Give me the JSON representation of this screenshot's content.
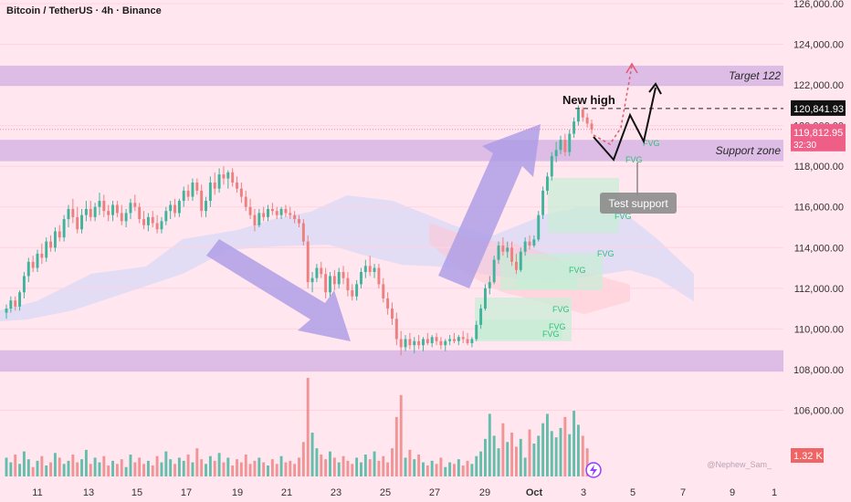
{
  "header": {
    "title": "Bitcoin / TetherUS · 4h · Binance"
  },
  "colors": {
    "up": "#3fb49b",
    "down": "#ee7f7f",
    "zone": "#d7b4e4",
    "cloud": "#d9d8f7",
    "arrow": "#ab9be6",
    "fvg": "#c6eed6",
    "fvg_text": "#2fbf7b",
    "price_tag": "#ef5e87",
    "ref_tag": "#111111",
    "vol_tag": "#ef6464",
    "bg": "#ffe6ef"
  },
  "chart_data": {
    "type": "candlestick",
    "title": "Bitcoin / TetherUS · 4h · Binance",
    "ylim": [
      104000,
      126000
    ],
    "y_ticks": [
      "126,000.00",
      "124,000.00",
      "122,000.00",
      "120,000.00",
      "118,000.00",
      "116,000.00",
      "114,000.00",
      "112,000.00",
      "110,000.00",
      "108,000.00",
      "106,000.00"
    ],
    "x_ticks": [
      "11",
      "13",
      "15",
      "17",
      "19",
      "21",
      "23",
      "25",
      "27",
      "29",
      "Oct",
      "3",
      "5",
      "7",
      "9",
      "1"
    ],
    "grid": true,
    "price_labels": {
      "reference": "120,841.93",
      "current": "119,812.95",
      "countdown": "32:30",
      "volume": "1.32 K"
    },
    "zones": [
      {
        "name": "Target 122",
        "from": 121950,
        "to": 122950
      },
      {
        "name": "Support zone",
        "from": 118250,
        "to": 119300
      },
      {
        "name": "",
        "from": 107900,
        "to": 108950
      }
    ],
    "annotations": {
      "new_high": "New high",
      "test_support": "Test support",
      "fvg": "FVG",
      "watermark": "@Nephew_Sam_"
    },
    "candles": [
      [
        110800,
        111200,
        110500,
        111000
      ],
      [
        111000,
        111600,
        110800,
        111400
      ],
      [
        111400,
        111600,
        110900,
        111100
      ],
      [
        111100,
        111900,
        110900,
        111800
      ],
      [
        111800,
        112800,
        111500,
        112600
      ],
      [
        112600,
        113500,
        112300,
        113300
      ],
      [
        113300,
        113600,
        112800,
        113000
      ],
      [
        113000,
        113900,
        112800,
        113700
      ],
      [
        113700,
        114200,
        113200,
        113500
      ],
      [
        113500,
        114500,
        113300,
        114300
      ],
      [
        114300,
        114600,
        113800,
        114000
      ],
      [
        114000,
        115000,
        113800,
        114800
      ],
      [
        114800,
        115100,
        114300,
        114500
      ],
      [
        114500,
        115600,
        114300,
        115400
      ],
      [
        115400,
        116100,
        115000,
        115900
      ],
      [
        115900,
        116400,
        115200,
        115500
      ],
      [
        115500,
        116000,
        114700,
        114900
      ],
      [
        114900,
        115900,
        114700,
        115600
      ],
      [
        115600,
        116300,
        115300,
        115900
      ],
      [
        115900,
        116300,
        115300,
        115500
      ],
      [
        115500,
        116200,
        115300,
        116000
      ],
      [
        116000,
        116700,
        115600,
        116300
      ],
      [
        116300,
        116600,
        115500,
        115800
      ],
      [
        115800,
        116100,
        115300,
        115600
      ],
      [
        115600,
        116300,
        115300,
        116100
      ],
      [
        116100,
        116300,
        115500,
        115700
      ],
      [
        115700,
        116100,
        115100,
        115300
      ],
      [
        115300,
        115900,
        115000,
        115700
      ],
      [
        115700,
        116400,
        115400,
        116200
      ],
      [
        116200,
        116600,
        115800,
        116000
      ],
      [
        116000,
        116200,
        115200,
        115400
      ],
      [
        115400,
        115800,
        114900,
        115100
      ],
      [
        115100,
        115700,
        114800,
        115500
      ],
      [
        115500,
        115800,
        115000,
        115200
      ],
      [
        115200,
        115600,
        114700,
        114900
      ],
      [
        114900,
        115500,
        114700,
        115300
      ],
      [
        115300,
        116000,
        115100,
        115800
      ],
      [
        115800,
        116300,
        115400,
        116100
      ],
      [
        116100,
        116400,
        115500,
        115700
      ],
      [
        115700,
        116400,
        115500,
        116300
      ],
      [
        116300,
        117000,
        116000,
        116800
      ],
      [
        116800,
        117100,
        116300,
        116500
      ],
      [
        116500,
        117400,
        116300,
        117200
      ],
      [
        117200,
        117400,
        116600,
        116800
      ],
      [
        116800,
        117100,
        115500,
        115800
      ],
      [
        115800,
        116500,
        115500,
        116300
      ],
      [
        116300,
        117500,
        116000,
        117200
      ],
      [
        117200,
        117700,
        116600,
        116900
      ],
      [
        116900,
        117900,
        116700,
        117600
      ],
      [
        117600,
        118000,
        117100,
        117400
      ],
      [
        117400,
        117800,
        116900,
        117700
      ],
      [
        117700,
        117900,
        117000,
        117200
      ],
      [
        117200,
        117500,
        116700,
        116900
      ],
      [
        116900,
        117200,
        116200,
        116500
      ],
      [
        116500,
        116800,
        115800,
        116000
      ],
      [
        116000,
        116400,
        115400,
        115600
      ],
      [
        115600,
        115900,
        114800,
        115100
      ],
      [
        115100,
        115900,
        115000,
        115700
      ],
      [
        115700,
        116000,
        115300,
        115500
      ],
      [
        115500,
        116100,
        115300,
        115900
      ],
      [
        115900,
        116200,
        115600,
        115800
      ],
      [
        115800,
        116000,
        115400,
        115600
      ],
      [
        115600,
        116000,
        115400,
        115900
      ],
      [
        115900,
        116100,
        115500,
        115700
      ],
      [
        115700,
        116000,
        115400,
        115600
      ],
      [
        115600,
        115800,
        115200,
        115400
      ],
      [
        115400,
        115600,
        115000,
        115200
      ],
      [
        115200,
        115400,
        114100,
        114300
      ],
      [
        114300,
        114600,
        112000,
        112300
      ],
      [
        112300,
        112800,
        111800,
        112500
      ],
      [
        112500,
        113200,
        112300,
        113000
      ],
      [
        113000,
        113300,
        112500,
        112700
      ],
      [
        112700,
        113000,
        111500,
        111800
      ],
      [
        111800,
        112800,
        111600,
        112600
      ],
      [
        112600,
        112900,
        111900,
        112200
      ],
      [
        112200,
        113000,
        112000,
        112800
      ],
      [
        112800,
        113100,
        112200,
        112500
      ],
      [
        112500,
        112800,
        111600,
        111900
      ],
      [
        111900,
        112200,
        111400,
        111600
      ],
      [
        111600,
        112400,
        111400,
        112200
      ],
      [
        112200,
        113000,
        112000,
        112800
      ],
      [
        112800,
        113400,
        112500,
        113100
      ],
      [
        113100,
        113600,
        112600,
        112800
      ],
      [
        112800,
        113200,
        112500,
        113000
      ],
      [
        113000,
        113200,
        112000,
        112200
      ],
      [
        112200,
        112500,
        111300,
        111500
      ],
      [
        111500,
        111800,
        110700,
        111000
      ],
      [
        111000,
        111300,
        110200,
        110500
      ],
      [
        110500,
        110800,
        109200,
        109500
      ],
      [
        109500,
        109900,
        108700,
        109100
      ],
      [
        109100,
        109700,
        108900,
        109500
      ],
      [
        109500,
        109800,
        109000,
        109200
      ],
      [
        109200,
        109600,
        108800,
        109400
      ],
      [
        109400,
        109700,
        109000,
        109200
      ],
      [
        109200,
        109600,
        108900,
        109500
      ],
      [
        109500,
        109800,
        109200,
        109300
      ],
      [
        109300,
        109700,
        109100,
        109600
      ],
      [
        109600,
        109800,
        109200,
        109400
      ],
      [
        109400,
        109600,
        109000,
        109200
      ],
      [
        109200,
        109500,
        108900,
        109400
      ],
      [
        109400,
        109700,
        109200,
        109500
      ],
      [
        109500,
        109800,
        109300,
        109400
      ],
      [
        109400,
        109700,
        109200,
        109600
      ],
      [
        109600,
        109900,
        109300,
        109500
      ],
      [
        109500,
        109800,
        109200,
        109300
      ],
      [
        109300,
        109600,
        109100,
        109500
      ],
      [
        109500,
        110400,
        109400,
        110200
      ],
      [
        110200,
        111200,
        110000,
        111000
      ],
      [
        111000,
        112200,
        110900,
        112000
      ],
      [
        112000,
        112600,
        111700,
        112300
      ],
      [
        112300,
        113600,
        112200,
        113400
      ],
      [
        113400,
        114300,
        113200,
        114100
      ],
      [
        114100,
        114500,
        113600,
        113800
      ],
      [
        113800,
        114300,
        113500,
        114000
      ],
      [
        114000,
        114300,
        113100,
        113300
      ],
      [
        113300,
        113700,
        112700,
        112900
      ],
      [
        112900,
        114000,
        112800,
        113800
      ],
      [
        113800,
        114500,
        113600,
        114300
      ],
      [
        114300,
        114600,
        113900,
        114100
      ],
      [
        114100,
        114600,
        114000,
        114400
      ],
      [
        114400,
        115800,
        114300,
        115600
      ],
      [
        115600,
        117000,
        115400,
        116800
      ],
      [
        116800,
        117700,
        116600,
        117500
      ],
      [
        117500,
        118700,
        117300,
        118500
      ],
      [
        118500,
        119200,
        118200,
        118800
      ],
      [
        118800,
        119500,
        118600,
        119300
      ],
      [
        119300,
        119600,
        118500,
        118700
      ],
      [
        118700,
        119800,
        118500,
        119600
      ],
      [
        119600,
        120400,
        119400,
        120200
      ],
      [
        120200,
        121000,
        120000,
        120800
      ],
      [
        120800,
        120900,
        120200,
        120400
      ],
      [
        120400,
        120600,
        119900,
        120100
      ],
      [
        120100,
        120300,
        119600,
        119813
      ]
    ],
    "volumes": [
      12,
      9,
      14,
      8,
      16,
      11,
      6,
      10,
      13,
      7,
      9,
      15,
      12,
      8,
      10,
      14,
      9,
      11,
      17,
      8,
      12,
      9,
      13,
      7,
      10,
      8,
      11,
      6,
      14,
      9,
      12,
      8,
      10,
      7,
      13,
      9,
      16,
      11,
      8,
      12,
      10,
      14,
      9,
      18,
      11,
      8,
      13,
      10,
      15,
      9,
      12,
      7,
      11,
      9,
      14,
      8,
      10,
      12,
      9,
      7,
      11,
      8,
      13,
      9,
      10,
      8,
      12,
      22,
      63,
      28,
      18,
      14,
      11,
      16,
      12,
      9,
      13,
      10,
      8,
      12,
      9,
      14,
      11,
      16,
      10,
      13,
      9,
      18,
      38,
      52,
      12,
      17,
      11,
      14,
      9,
      7,
      10,
      8,
      12,
      6,
      9,
      8,
      11,
      7,
      10,
      8,
      13,
      16,
      24,
      40,
      26,
      18,
      34,
      22,
      28,
      19,
      24,
      12,
      30,
      21,
      26,
      34,
      40,
      29,
      25,
      31,
      38,
      27,
      42,
      33,
      26,
      18,
      8,
      4
    ]
  }
}
